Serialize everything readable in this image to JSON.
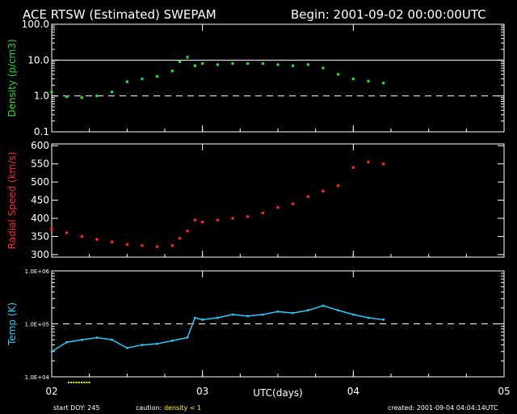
{
  "header": {
    "title": "ACE RTSW (Estimated) SWEPAM",
    "begin": "Begin: 2001-09-02 00:00:00UTC"
  },
  "footer": {
    "start_doy": "start DOY: 245",
    "caution_prefix": "caution:",
    "caution_value": "density < 1",
    "created": "created: 2001-09-04 04:04:14UTC"
  },
  "colors": {
    "background": "#000000",
    "axes": "#ffffff",
    "density": "#22dd22",
    "speed": "#ff2222",
    "temp": "#22ccff",
    "caution": "#ffff00"
  },
  "chart_data": [
    {
      "type": "scatter",
      "ylabel": "Density (p/cm3)",
      "yscale": "log",
      "ylim": [
        0.1,
        100
      ],
      "yticks": [
        "100.0",
        "10.0",
        "1.0",
        "0.1"
      ],
      "reference_lines": [
        {
          "y": 10,
          "style": "solid"
        },
        {
          "y": 1,
          "style": "dashed"
        }
      ],
      "xlim": [
        2,
        5
      ],
      "series": [
        {
          "color": "#22dd22",
          "x": [
            2.0,
            2.1,
            2.2,
            2.3,
            2.4,
            2.5,
            2.6,
            2.7,
            2.8,
            2.85,
            2.9,
            2.95,
            3.0,
            3.1,
            3.2,
            3.3,
            3.4,
            3.5,
            3.6,
            3.7,
            3.8,
            3.9,
            4.0,
            4.1,
            4.2
          ],
          "y": [
            1.3,
            0.95,
            0.9,
            1.0,
            1.3,
            2.5,
            3.0,
            3.5,
            5.0,
            9.0,
            12.0,
            7.0,
            8.0,
            7.5,
            8.0,
            8.0,
            8.0,
            7.5,
            7.0,
            7.5,
            6.0,
            4.0,
            3.0,
            2.6,
            2.3
          ]
        }
      ]
    },
    {
      "type": "scatter",
      "ylabel": "Radial Speed (km/s)",
      "ylim": [
        293,
        605
      ],
      "yticks": [
        300,
        350,
        400,
        450,
        500,
        550,
        600
      ],
      "xlim": [
        2,
        5
      ],
      "series": [
        {
          "color": "#ff2222",
          "x": [
            2.0,
            2.1,
            2.2,
            2.3,
            2.4,
            2.5,
            2.6,
            2.7,
            2.8,
            2.85,
            2.9,
            2.95,
            3.0,
            3.1,
            3.2,
            3.3,
            3.4,
            3.5,
            3.6,
            3.7,
            3.8,
            3.9,
            4.0,
            4.1,
            4.2
          ],
          "y": [
            370,
            360,
            350,
            342,
            335,
            328,
            325,
            322,
            325,
            345,
            365,
            395,
            390,
            395,
            400,
            405,
            415,
            430,
            440,
            460,
            475,
            490,
            540,
            555,
            550
          ]
        }
      ]
    },
    {
      "type": "line",
      "ylabel": "Temp (K)",
      "yscale": "log",
      "ylim": [
        10000,
        1000000
      ],
      "yticks": [
        "1.0E+06",
        "1.0E+05",
        "1.0E+04"
      ],
      "reference_lines": [
        {
          "y": 100000,
          "style": "dashed"
        }
      ],
      "xlim": [
        2,
        5
      ],
      "xticks": [
        "02",
        "03",
        "04",
        "05"
      ],
      "xlabel": "UTC(days)",
      "series": [
        {
          "color": "#22ccff",
          "x": [
            2.0,
            2.1,
            2.2,
            2.3,
            2.4,
            2.5,
            2.6,
            2.7,
            2.8,
            2.9,
            2.95,
            3.0,
            3.1,
            3.2,
            3.3,
            3.4,
            3.5,
            3.6,
            3.7,
            3.8,
            3.9,
            4.0,
            4.1,
            4.2
          ],
          "y": [
            30000,
            45000,
            50000,
            55000,
            50000,
            35000,
            40000,
            42000,
            48000,
            55000,
            130000,
            120000,
            130000,
            150000,
            140000,
            150000,
            170000,
            160000,
            180000,
            220000,
            180000,
            150000,
            130000,
            120000
          ]
        }
      ]
    }
  ]
}
